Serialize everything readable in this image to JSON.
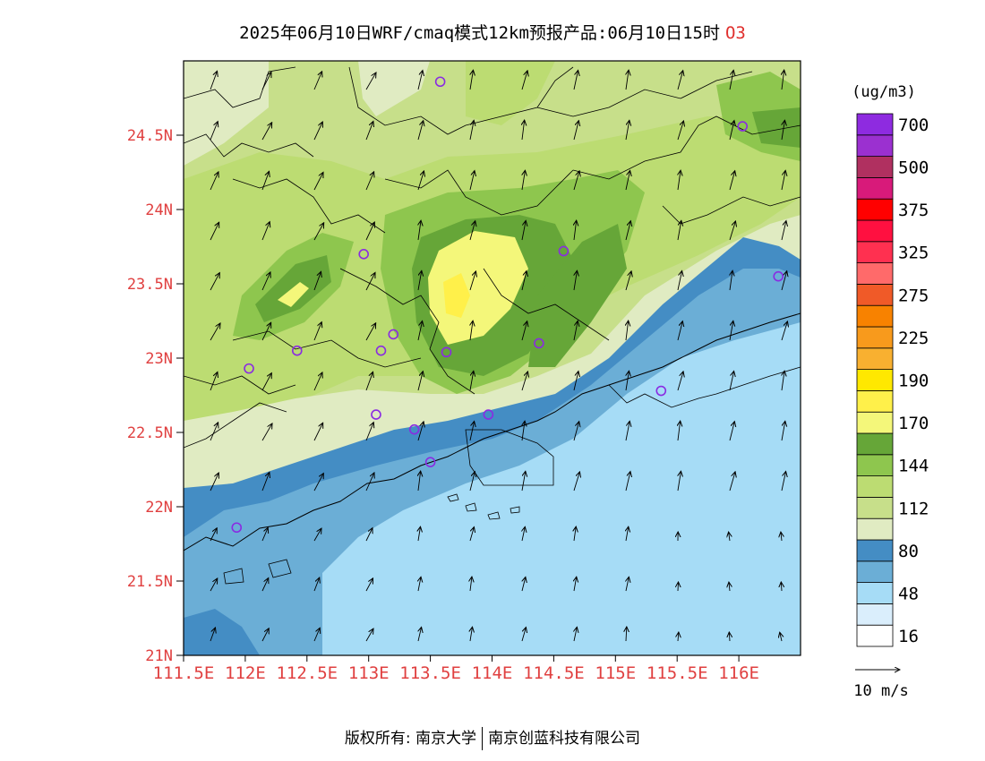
{
  "title": {
    "main": "2025年06月10日WRF/cmaq模式12km预报产品:06月10日15时",
    "pollutant": "O3"
  },
  "map": {
    "lat_labels": [
      "24.5N",
      "24N",
      "23.5N",
      "23N",
      "22.5N",
      "22N",
      "21.5N",
      "21N"
    ],
    "lon_labels": [
      "111.5E",
      "112E",
      "112.5E",
      "113E",
      "113.5E",
      "114E",
      "114.5E",
      "115E",
      "115.5E",
      "116E"
    ],
    "lat_range": [
      21,
      25
    ],
    "lon_range": [
      111.5,
      116.5
    ],
    "tick_color": "#e04040",
    "station_marker_color": "#8a2be2",
    "vector_note": "wind vectors (arrows)"
  },
  "legend": {
    "unit": "(ug/m3)",
    "color_boxes": [
      {
        "color": "#ffffff"
      },
      {
        "color": "#daeefc"
      },
      {
        "color": "#a6dcf6"
      },
      {
        "color": "#6baed6"
      },
      {
        "color": "#448dc4"
      },
      {
        "color": "#e0ebc2"
      },
      {
        "color": "#c7df8a"
      },
      {
        "color": "#bcdc72"
      },
      {
        "color": "#8ec64e"
      },
      {
        "color": "#66a638"
      },
      {
        "color": "#f4f77a"
      },
      {
        "color": "#fff04a"
      },
      {
        "color": "#ffe800"
      },
      {
        "color": "#f8b030"
      },
      {
        "color": "#f89a1c"
      },
      {
        "color": "#f88200"
      },
      {
        "color": "#f05a28"
      },
      {
        "color": "#ff6a6a"
      },
      {
        "color": "#ff3050"
      },
      {
        "color": "#ff1040"
      },
      {
        "color": "#ff0000"
      },
      {
        "color": "#d81a7a"
      },
      {
        "color": "#b03060"
      },
      {
        "color": "#9b30d0"
      },
      {
        "color": "#8e2be0"
      }
    ],
    "labels": [
      "16",
      "48",
      "80",
      "112",
      "144",
      "170",
      "190",
      "225",
      "275",
      "325",
      "375",
      "500",
      "700"
    ]
  },
  "wind_scale": {
    "label": "10 m/s"
  },
  "footer": {
    "left": "版权所有: 南京大学",
    "right": "南京创蓝科技有限公司"
  }
}
